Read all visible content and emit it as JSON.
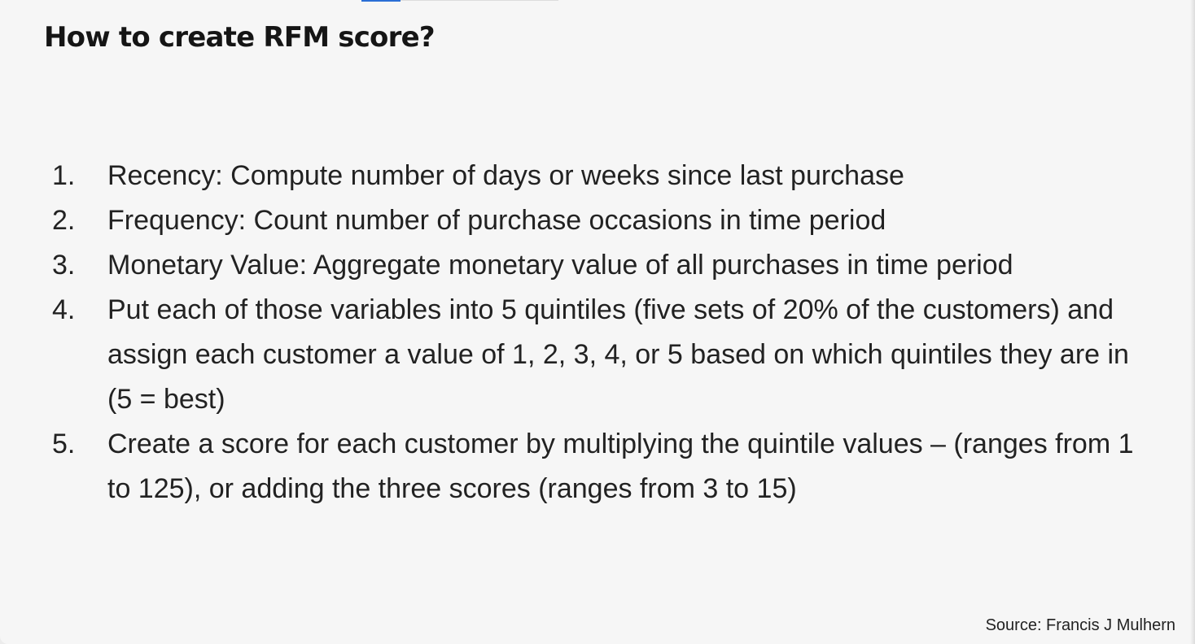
{
  "slide": {
    "title": "How to create RFM score?",
    "steps": [
      {
        "number": "1.",
        "text": "Recency: Compute number of days or weeks since last purchase"
      },
      {
        "number": "2.",
        "text": "Frequency: Count number of purchase occasions in time period"
      },
      {
        "number": "3.",
        "text": "Monetary Value: Aggregate monetary value of all purchases in time period"
      },
      {
        "number": "4.",
        "text": "Put each of those variables into 5 quintiles (five sets of 20% of the customers) and assign each customer a value of 1, 2, 3, 4, or 5 based on which quintiles they are in (5 = best)"
      },
      {
        "number": "5.",
        "text": "Create a score for each customer by multiplying the quintile values – (ranges from 1 to 125), or adding the three scores (ranges from 3 to 15)"
      }
    ],
    "source": "Source: Francis J Mulhern"
  },
  "colors": {
    "background": "#f6f6f6",
    "text": "#222222",
    "accent": "#2b6fd6"
  }
}
